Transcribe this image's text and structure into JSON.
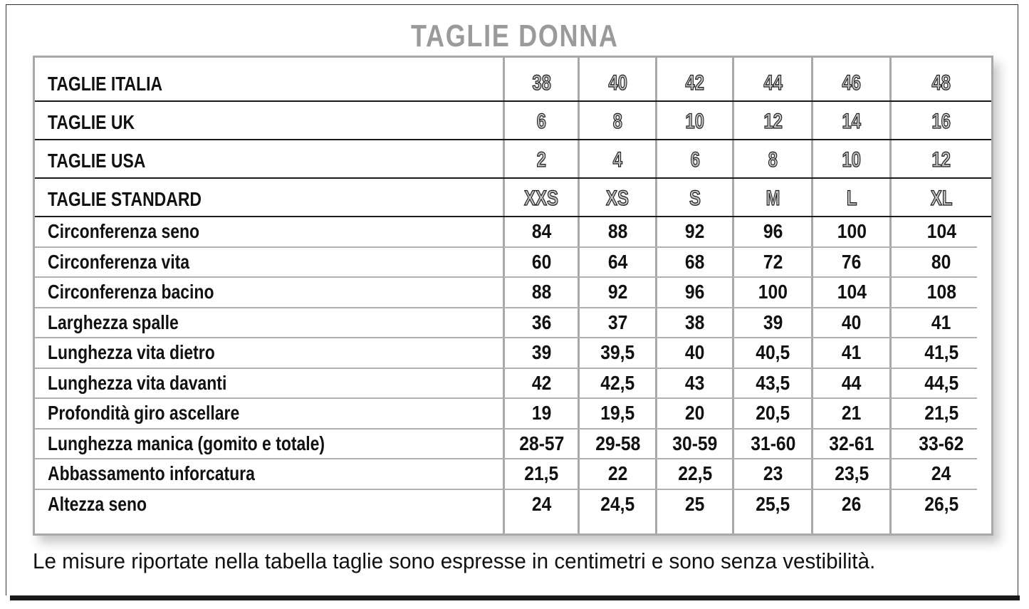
{
  "title": "TAGLIE DONNA",
  "header_rows": [
    {
      "label": "TAGLIE ITALIA",
      "values": [
        "38",
        "40",
        "42",
        "44",
        "46",
        "48"
      ]
    },
    {
      "label": "TAGLIE UK",
      "values": [
        "6",
        "8",
        "10",
        "12",
        "14",
        "16"
      ]
    },
    {
      "label": "TAGLIE USA",
      "values": [
        "2",
        "4",
        "6",
        "8",
        "10",
        "12"
      ]
    },
    {
      "label": "TAGLIE STANDARD",
      "values": [
        "XXS",
        "XS",
        "S",
        "M",
        "L",
        "XL"
      ]
    }
  ],
  "measure_rows": [
    {
      "label": "Circonferenza seno",
      "values": [
        "84",
        "88",
        "92",
        "96",
        "100",
        "104"
      ]
    },
    {
      "label": "Circonferenza vita",
      "values": [
        "60",
        "64",
        "68",
        "72",
        "76",
        "80"
      ]
    },
    {
      "label": "Circonferenza bacino",
      "values": [
        "88",
        "92",
        "96",
        "100",
        "104",
        "108"
      ]
    },
    {
      "label": "Larghezza spalle",
      "values": [
        "36",
        "37",
        "38",
        "39",
        "40",
        "41"
      ]
    },
    {
      "label": "Lunghezza vita dietro",
      "values": [
        "39",
        "39,5",
        "40",
        "40,5",
        "41",
        "41,5"
      ]
    },
    {
      "label": "Lunghezza vita davanti",
      "values": [
        "42",
        "42,5",
        "43",
        "43,5",
        "44",
        "44,5"
      ]
    },
    {
      "label": "Profondità giro ascellare",
      "values": [
        "19",
        "19,5",
        "20",
        "20,5",
        "21",
        "21,5"
      ]
    },
    {
      "label": "Lunghezza manica (gomito e totale)",
      "values": [
        "28-57",
        "29-58",
        "30-59",
        "31-60",
        "32-61",
        "33-62"
      ]
    },
    {
      "label": "Abbassamento inforcatura",
      "values": [
        "21,5",
        "22",
        "22,5",
        "23",
        "23,5",
        "24"
      ]
    },
    {
      "label": "Altezza seno",
      "values": [
        "24",
        "24,5",
        "25",
        "25,5",
        "26",
        "26,5"
      ]
    }
  ],
  "note": "Le misure riportate nella tabella taglie sono espresse in centimetri e sono senza vestibilità.",
  "colors": {
    "title": "#9a9a9a",
    "table_border": "#a8a8a8",
    "text": "#111111"
  }
}
